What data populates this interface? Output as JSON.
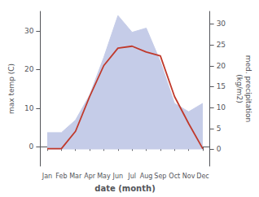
{
  "chart_data": {
    "type": "line",
    "xlabel": "date (month)",
    "ylabel": "max temp (C)",
    "y2label": "med. precipitation\n(kg/m2)",
    "categories": [
      "Jan",
      "Feb",
      "Mar",
      "Apr",
      "May",
      "Jun",
      "Jul",
      "Aug",
      "Sep",
      "Oct",
      "Nov",
      "Dec"
    ],
    "series": [
      {
        "type": "area",
        "axis": "y2",
        "color": "#c5cce8",
        "values": [
          4,
          4,
          7,
          13,
          22,
          32,
          28,
          29,
          21,
          11,
          9,
          11
        ]
      },
      {
        "type": "line",
        "color": "#c0392b",
        "values": [
          -0.5,
          -0.5,
          4.0,
          13.0,
          21.0,
          25.5,
          26.0,
          24.5,
          23.5,
          13.0,
          6.0,
          -0.5
        ]
      }
    ],
    "ylim": [
      -5,
      35
    ],
    "yticks": [
      0,
      10,
      20,
      30
    ],
    "y2lim": [
      -4,
      33
    ],
    "y2ticks": [
      0,
      5,
      10,
      15,
      20,
      25,
      30
    ],
    "grid": false
  }
}
